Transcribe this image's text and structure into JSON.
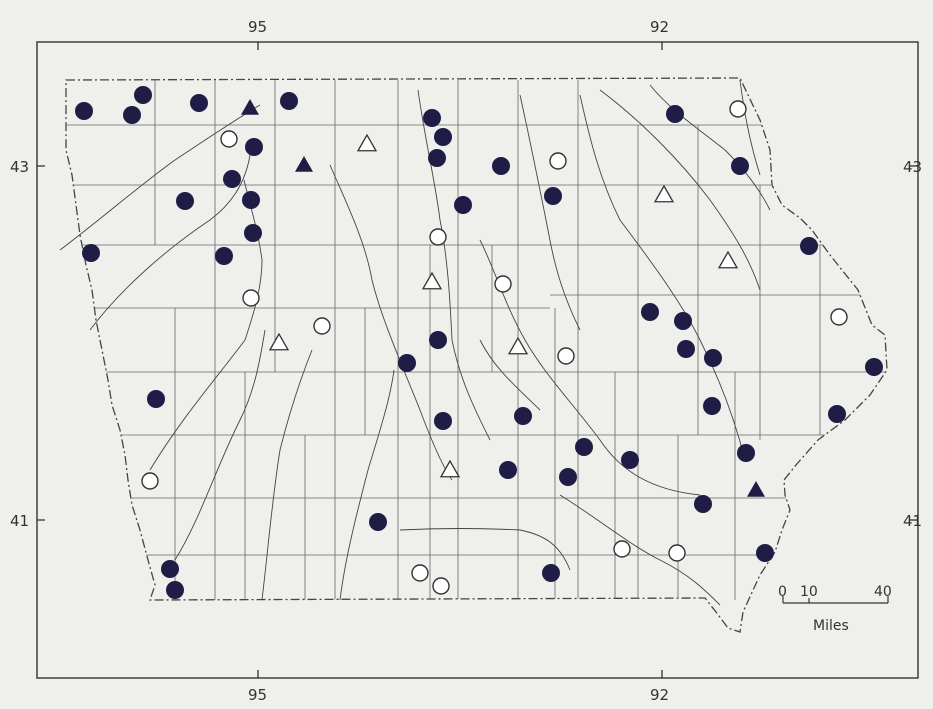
{
  "map": {
    "axis_labels": {
      "top_left": "95",
      "top_right": "92",
      "bottom_left": "95",
      "bottom_right": "92",
      "left_top": "43",
      "left_bottom": "41",
      "right_top": "43",
      "right_bottom": "41"
    },
    "scale": {
      "tick_0": "0",
      "tick_10": "10",
      "tick_40": "40",
      "unit": "Miles"
    },
    "colors": {
      "background": "#efefec",
      "ink": "#333333",
      "filled_marker": "#1f1d45",
      "county_line": "#555555",
      "river": "#444444"
    },
    "marker_types": [
      "filled-circle",
      "open-circle",
      "filled-triangle",
      "open-triangle"
    ]
  }
}
